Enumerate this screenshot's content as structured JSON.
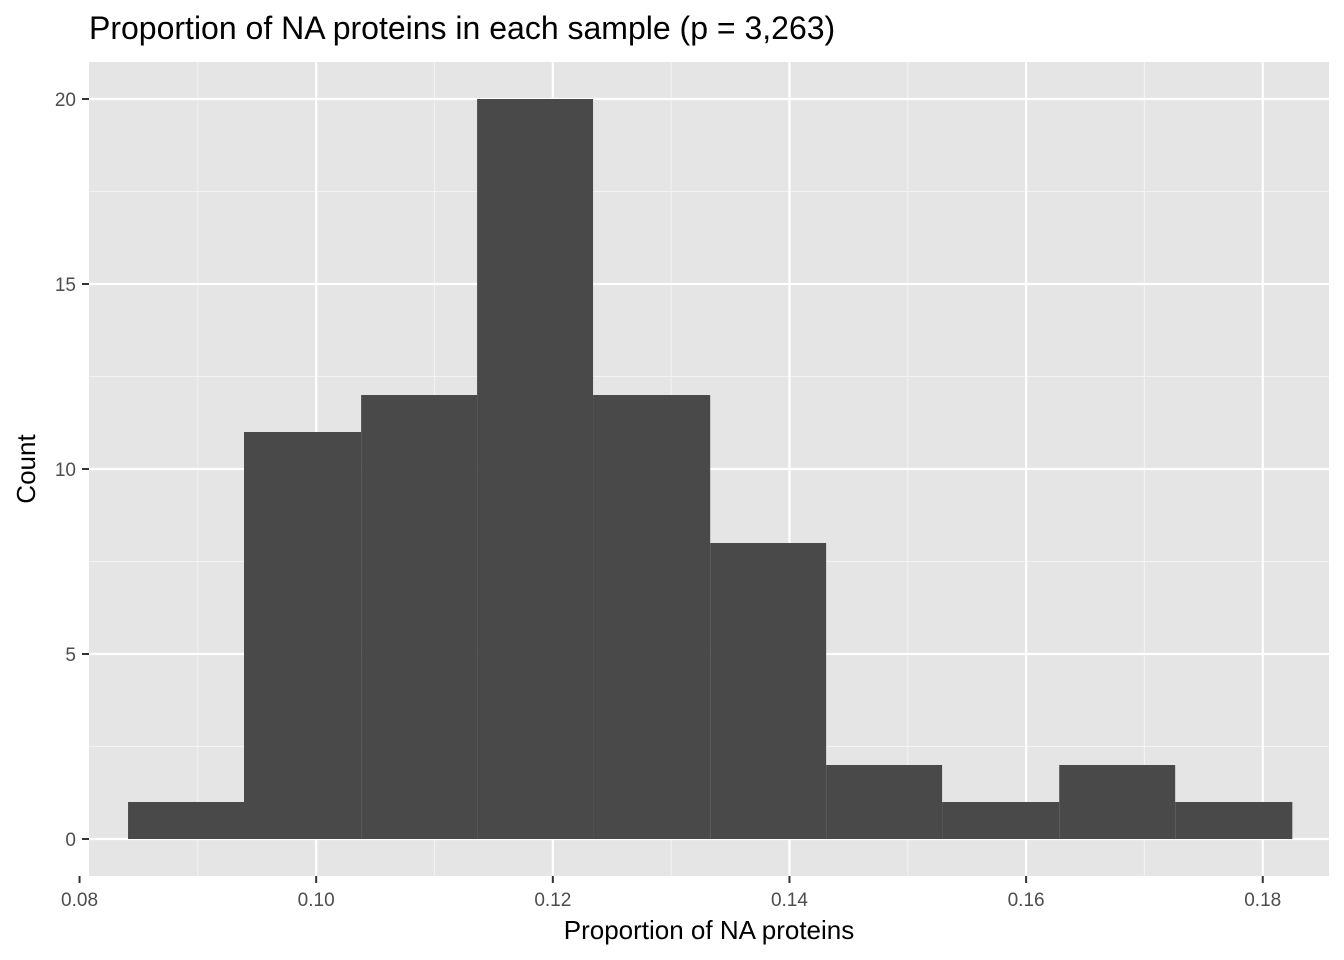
{
  "chart_data": {
    "type": "bar",
    "title": "Proportion of NA proteins in each sample (p = 3,263)",
    "xlabel": "Proportion of NA proteins",
    "ylabel": "Count",
    "xlim": [
      0.0808,
      0.1856
    ],
    "ylim": [
      -1,
      21
    ],
    "x_ticks": [
      0.08,
      0.1,
      0.12,
      0.14,
      0.16,
      0.18
    ],
    "x_tick_labels": [
      "0.08",
      "0.10",
      "0.12",
      "0.14",
      "0.16",
      "0.18"
    ],
    "y_ticks": [
      0,
      5,
      10,
      15,
      20
    ],
    "y_tick_labels": [
      "0",
      "5",
      "10",
      "15",
      "20"
    ],
    "bins": [
      {
        "x0": 0.0841,
        "x1": 0.0939,
        "count": 1
      },
      {
        "x0": 0.0939,
        "x1": 0.1038,
        "count": 11
      },
      {
        "x0": 0.1038,
        "x1": 0.1136,
        "count": 12
      },
      {
        "x0": 0.1136,
        "x1": 0.1234,
        "count": 20
      },
      {
        "x0": 0.1234,
        "x1": 0.1333,
        "count": 12
      },
      {
        "x0": 0.1333,
        "x1": 0.1431,
        "count": 8
      },
      {
        "x0": 0.1431,
        "x1": 0.1529,
        "count": 2
      },
      {
        "x0": 0.1529,
        "x1": 0.1628,
        "count": 1
      },
      {
        "x0": 0.1628,
        "x1": 0.1726,
        "count": 2
      },
      {
        "x0": 0.1726,
        "x1": 0.1825,
        "count": 1
      }
    ],
    "grid": true,
    "colors": {
      "panel_background": "#e5e5e5",
      "grid_major": "#ffffff",
      "grid_minor": "#f2f2f2",
      "bar_fill": "#494949",
      "tick_color": "#333333"
    }
  }
}
